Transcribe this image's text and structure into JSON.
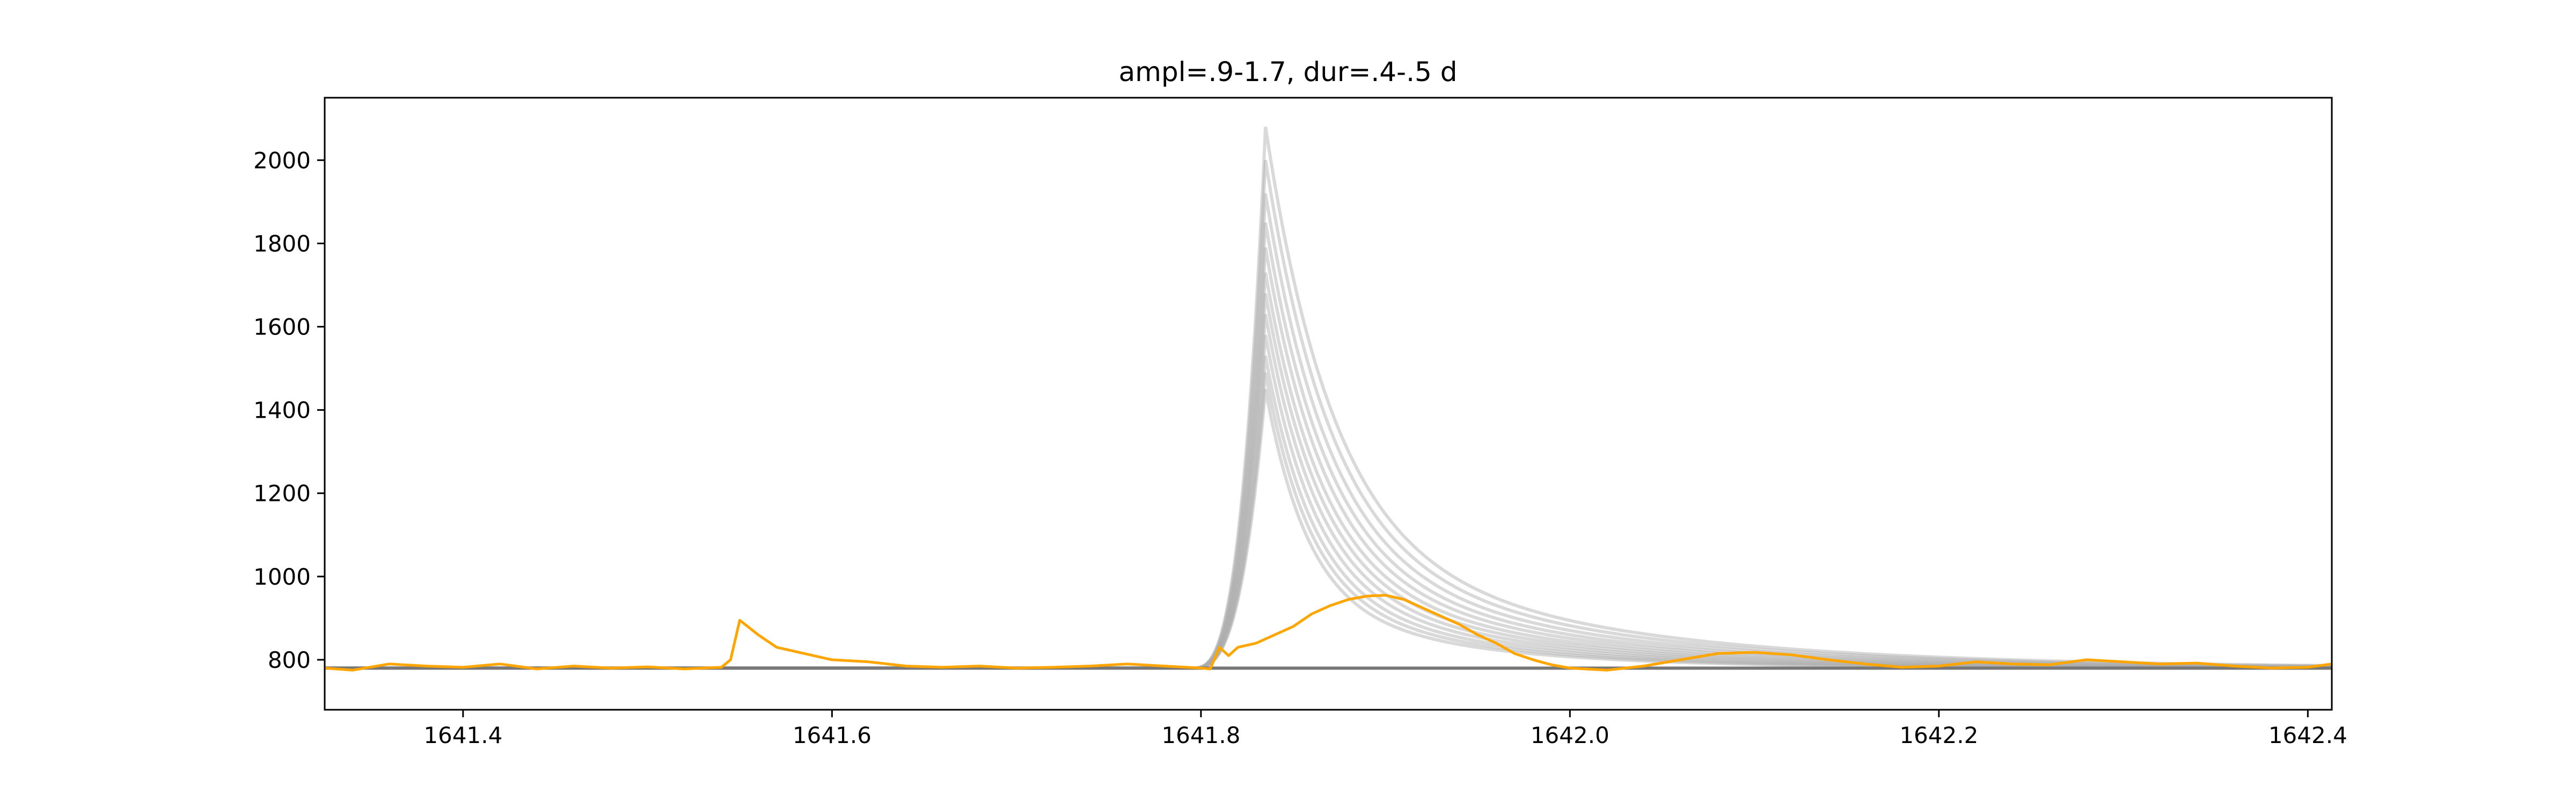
{
  "chart_data": {
    "type": "line",
    "title": "ampl=.9-1.7, dur=.4-.5 d",
    "xlabel": "",
    "ylabel": "",
    "xlim": [
      1641.325,
      1642.413
    ],
    "ylim": [
      680,
      2150
    ],
    "xticks": [
      1641.4,
      1641.6,
      1641.8,
      1642.0,
      1642.2,
      1642.4
    ],
    "xtick_labels": [
      "1641.4",
      "1641.6",
      "1641.8",
      "1642.0",
      "1642.2",
      "1642.4"
    ],
    "yticks": [
      800,
      1000,
      1200,
      1400,
      1600,
      1800,
      2000
    ],
    "ytick_labels": [
      "800",
      "1000",
      "1200",
      "1400",
      "1600",
      "1800",
      "2000"
    ],
    "grid": false,
    "legend": "none",
    "colors": {
      "observed": "#ffa500",
      "model_bundle": "#aaaaaa",
      "baseline": "#777777"
    },
    "model_family": {
      "baseline": 780,
      "rise_start": 1641.795,
      "peak_time": 1641.835,
      "peak_fluxes": [
        1450,
        1490,
        1530,
        1580,
        1630,
        1680,
        1730,
        1790,
        1850,
        1920,
        2000,
        2080
      ],
      "decay_taus": [
        0.09,
        0.095,
        0.1,
        0.105,
        0.11,
        0.115,
        0.12,
        0.125,
        0.13,
        0.135,
        0.14,
        0.145
      ]
    },
    "series": [
      {
        "values": [
          [
            1641.325,
            780
          ],
          [
            1641.34,
            775
          ],
          [
            1641.36,
            790
          ],
          [
            1641.38,
            785
          ],
          [
            1641.4,
            782
          ],
          [
            1641.42,
            790
          ],
          [
            1641.44,
            778
          ],
          [
            1641.46,
            785
          ],
          [
            1641.48,
            780
          ],
          [
            1641.5,
            783
          ],
          [
            1641.52,
            778
          ],
          [
            1641.54,
            782
          ],
          [
            1641.545,
            800
          ],
          [
            1641.55,
            895
          ],
          [
            1641.56,
            860
          ],
          [
            1641.57,
            830
          ],
          [
            1641.58,
            820
          ],
          [
            1641.59,
            810
          ],
          [
            1641.6,
            800
          ],
          [
            1641.62,
            795
          ],
          [
            1641.64,
            785
          ],
          [
            1641.66,
            782
          ],
          [
            1641.68,
            785
          ],
          [
            1641.7,
            780
          ],
          [
            1641.72,
            782
          ],
          [
            1641.74,
            785
          ],
          [
            1641.76,
            790
          ],
          [
            1641.78,
            785
          ],
          [
            1641.8,
            780
          ],
          [
            1641.805,
            778
          ],
          [
            1641.81,
            830
          ],
          [
            1641.815,
            810
          ],
          [
            1641.82,
            830
          ],
          [
            1641.83,
            840
          ],
          [
            1641.84,
            860
          ],
          [
            1641.85,
            880
          ],
          [
            1641.86,
            910
          ],
          [
            1641.87,
            930
          ],
          [
            1641.88,
            945
          ],
          [
            1641.89,
            953
          ],
          [
            1641.9,
            955
          ],
          [
            1641.91,
            945
          ],
          [
            1641.92,
            925
          ],
          [
            1641.93,
            905
          ],
          [
            1641.94,
            885
          ],
          [
            1641.95,
            860
          ],
          [
            1641.96,
            840
          ],
          [
            1641.97,
            815
          ],
          [
            1641.98,
            800
          ],
          [
            1641.99,
            788
          ],
          [
            1642.0,
            780
          ],
          [
            1642.02,
            775
          ],
          [
            1642.04,
            785
          ],
          [
            1642.06,
            800
          ],
          [
            1642.08,
            815
          ],
          [
            1642.1,
            818
          ],
          [
            1642.12,
            812
          ],
          [
            1642.14,
            800
          ],
          [
            1642.16,
            790
          ],
          [
            1642.18,
            782
          ],
          [
            1642.2,
            785
          ],
          [
            1642.22,
            795
          ],
          [
            1642.24,
            790
          ],
          [
            1642.26,
            788
          ],
          [
            1642.28,
            800
          ],
          [
            1642.3,
            795
          ],
          [
            1642.32,
            790
          ],
          [
            1642.34,
            792
          ],
          [
            1642.36,
            785
          ],
          [
            1642.38,
            780
          ],
          [
            1642.4,
            782
          ],
          [
            1642.413,
            790
          ]
        ]
      }
    ]
  }
}
